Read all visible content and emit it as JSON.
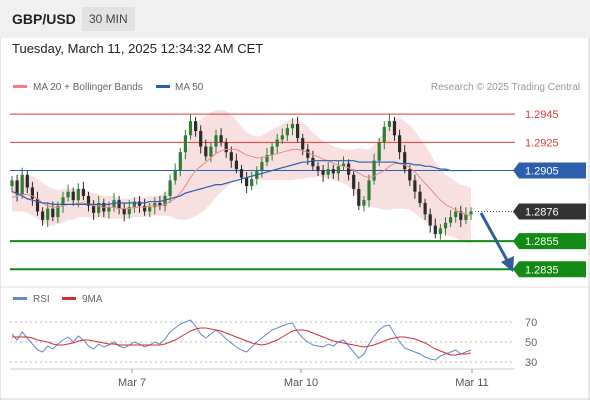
{
  "header": {
    "pair": "GBP/USD",
    "timeframe": "30 MIN"
  },
  "timestamp": "Tuesday, March 11, 2025 12:34:32 AM CET",
  "legend": {
    "bb": "MA 20 + Bollinger Bands",
    "ma50": "MA 50",
    "rsi": "RSI",
    "rsi_ma": "9MA"
  },
  "source": "Research © 2025 Trading Central",
  "colors": {
    "up": "#2e7d32",
    "down": "#2b2b2b",
    "resistance": "#e53935",
    "support": "#138a13",
    "ma50": "#2b5fad",
    "band_fill": "#f7d5d5",
    "ma20": "#e88a8a",
    "rsi": "#6688cc",
    "rsi_ma": "#d32f2f",
    "current_price_bg": "#333333",
    "arrow": "#2f5d9e"
  },
  "chart_data": [
    {
      "type": "candlestick",
      "title": "GBP/USD",
      "timeframe": "30 MIN",
      "x_ticks": [
        "Mar 7",
        "Mar 10",
        "Mar 11"
      ],
      "ylim": [
        1.2826,
        1.2955
      ],
      "levels": [
        {
          "value": 1.2945,
          "label": "1.2945",
          "kind": "resistance"
        },
        {
          "value": 1.2925,
          "label": "1.2925",
          "kind": "resistance"
        },
        {
          "value": 1.2905,
          "label": "1.2905",
          "kind": "pivot"
        },
        {
          "value": 1.2876,
          "label": "1.2876",
          "kind": "current"
        },
        {
          "value": 1.2855,
          "label": "1.2855",
          "kind": "support"
        },
        {
          "value": 1.2835,
          "label": "1.2835",
          "kind": "support"
        }
      ],
      "close": [
        1.2898,
        1.2888,
        1.2902,
        1.2893,
        1.2885,
        1.2876,
        1.287,
        1.2878,
        1.2872,
        1.288,
        1.2886,
        1.289,
        1.2884,
        1.2892,
        1.2887,
        1.288,
        1.2875,
        1.2882,
        1.2876,
        1.2879,
        1.2884,
        1.2878,
        1.2874,
        1.2879,
        1.2883,
        1.288,
        1.2876,
        1.2879,
        1.2882,
        1.288,
        1.2887,
        1.2898,
        1.2905,
        1.2918,
        1.293,
        1.294,
        1.2933,
        1.2922,
        1.2915,
        1.2922,
        1.293,
        1.2925,
        1.2918,
        1.2912,
        1.2906,
        1.29,
        1.2894,
        1.2899,
        1.2905,
        1.2911,
        1.2916,
        1.2922,
        1.2927,
        1.293,
        1.2935,
        1.2938,
        1.2928,
        1.292,
        1.2914,
        1.2908,
        1.2905,
        1.2902,
        1.2906,
        1.2903,
        1.2908,
        1.291,
        1.2902,
        1.2892,
        1.288,
        1.2884,
        1.2898,
        1.2912,
        1.2925,
        1.2936,
        1.294,
        1.293,
        1.2918,
        1.2906,
        1.2898,
        1.289,
        1.2882,
        1.2874,
        1.2866,
        1.286,
        1.2864,
        1.2868,
        1.2872,
        1.2876,
        1.287,
        1.2874,
        1.2876
      ],
      "ma20": [
        1.2886,
        1.2887,
        1.2888,
        1.2888,
        1.2887,
        1.2885,
        1.2882,
        1.288,
        1.2879,
        1.2879,
        1.288,
        1.2881,
        1.2881,
        1.2882,
        1.2882,
        1.2881,
        1.288,
        1.288,
        1.2879,
        1.2879,
        1.2879,
        1.2878,
        1.2878,
        1.2878,
        1.2879,
        1.2879,
        1.2879,
        1.288,
        1.288,
        1.288,
        1.2881,
        1.2883,
        1.2885,
        1.2889,
        1.2894,
        1.29,
        1.2905,
        1.2908,
        1.2911,
        1.2914,
        1.2917,
        1.2919,
        1.292,
        1.292,
        1.292,
        1.2918,
        1.2916,
        1.2915,
        1.2914,
        1.2914,
        1.2915,
        1.2916,
        1.2917,
        1.2918,
        1.2919,
        1.292,
        1.292,
        1.2919,
        1.2918,
        1.2916,
        1.2915,
        1.2913,
        1.2912,
        1.291,
        1.2909,
        1.2908,
        1.2907,
        1.2905,
        1.2903,
        1.2901,
        1.29,
        1.2901,
        1.2903,
        1.2905,
        1.2908,
        1.291,
        1.291,
        1.2909,
        1.2907,
        1.2904,
        1.29,
        1.2896,
        1.2892,
        1.2888,
        1.2884,
        1.2881,
        1.2879,
        1.2877,
        1.2875,
        1.2874,
        1.2873
      ],
      "ma50": [
        1.289,
        1.2889,
        1.2887,
        1.2885,
        1.2884,
        1.2883,
        1.2882,
        1.2882,
        1.2881,
        1.2881,
        1.2881,
        1.2881,
        1.2881,
        1.2881,
        1.2881,
        1.2881,
        1.2881,
        1.2881,
        1.2881,
        1.2881,
        1.2882,
        1.2882,
        1.2882,
        1.2882,
        1.2882,
        1.2882,
        1.2882,
        1.2883,
        1.2883,
        1.2883,
        1.2884,
        1.2885,
        1.2886,
        1.2887,
        1.2889,
        1.289,
        1.2891,
        1.2892,
        1.2893,
        1.2894,
        1.2895,
        1.2895,
        1.2896,
        1.2897,
        1.2898,
        1.2899,
        1.29,
        1.2901,
        1.2902,
        1.2903,
        1.2904,
        1.2905,
        1.2906,
        1.2907,
        1.2908,
        1.2909,
        1.291,
        1.2911,
        1.2911,
        1.2912,
        1.2912,
        1.2912,
        1.2912,
        1.2912,
        1.2912,
        1.2912,
        1.2912,
        1.2912,
        1.2911,
        1.2911,
        1.2911,
        1.2911,
        1.2911,
        1.2911,
        1.2911,
        1.2911,
        1.291,
        1.291,
        1.291,
        1.2909,
        1.2909,
        1.2908,
        1.2908,
        1.2907,
        1.2906,
        1.2906,
        1.2905,
        1.2905,
        1.2905,
        1.2905,
        1.2905
      ],
      "bb_width": [
        0.001,
        0.0011,
        0.0012,
        0.0013,
        0.0014,
        0.0014,
        0.0014,
        0.0014,
        0.0013,
        0.0012,
        0.0012,
        0.0011,
        0.0011,
        0.001,
        0.001,
        0.0009,
        0.0009,
        0.0008,
        0.0008,
        0.0008,
        0.0008,
        0.0007,
        0.0007,
        0.0007,
        0.0007,
        0.0007,
        0.0007,
        0.0007,
        0.0007,
        0.0007,
        0.0008,
        0.001,
        0.0014,
        0.0019,
        0.0024,
        0.0029,
        0.0032,
        0.0033,
        0.0033,
        0.0032,
        0.0031,
        0.0029,
        0.0027,
        0.0024,
        0.0021,
        0.0018,
        0.0016,
        0.0015,
        0.0015,
        0.0016,
        0.0017,
        0.0018,
        0.0019,
        0.002,
        0.0021,
        0.0022,
        0.0021,
        0.002,
        0.0018,
        0.0016,
        0.0014,
        0.0013,
        0.0012,
        0.0012,
        0.0012,
        0.0012,
        0.0013,
        0.0015,
        0.0018,
        0.0019,
        0.002,
        0.0022,
        0.0025,
        0.0028,
        0.0031,
        0.0032,
        0.0032,
        0.0031,
        0.003,
        0.0029,
        0.0028,
        0.0027,
        0.0025,
        0.0023,
        0.0022,
        0.0021,
        0.0021,
        0.002,
        0.002,
        0.002,
        0.002
      ]
    },
    {
      "type": "line",
      "title": "RSI",
      "y_ticks": [
        70,
        50,
        30
      ],
      "ylim": [
        20,
        80
      ],
      "series": [
        {
          "name": "RSI",
          "values": [
            58,
            52,
            60,
            54,
            48,
            42,
            40,
            46,
            43,
            48,
            52,
            55,
            50,
            56,
            52,
            46,
            43,
            48,
            45,
            47,
            50,
            46,
            44,
            47,
            50,
            48,
            45,
            47,
            50,
            48,
            53,
            60,
            64,
            68,
            70,
            72,
            66,
            58,
            54,
            58,
            62,
            58,
            53,
            49,
            45,
            42,
            40,
            45,
            50,
            54,
            58,
            62,
            64,
            66,
            68,
            69,
            60,
            54,
            50,
            47,
            46,
            45,
            48,
            46,
            50,
            52,
            46,
            40,
            34,
            38,
            48,
            56,
            62,
            66,
            67,
            58,
            50,
            44,
            42,
            40,
            38,
            35,
            33,
            32,
            36,
            38,
            40,
            42,
            38,
            40,
            42
          ]
        },
        {
          "name": "9MA",
          "values": [
            55,
            55,
            55,
            55,
            54,
            52,
            51,
            50,
            48,
            47,
            47,
            48,
            49,
            51,
            52,
            52,
            51,
            50,
            49,
            48,
            48,
            47,
            47,
            47,
            47,
            47,
            47,
            47,
            47,
            47,
            48,
            50,
            52,
            55,
            58,
            61,
            63,
            64,
            64,
            63,
            62,
            61,
            59,
            57,
            55,
            53,
            51,
            49,
            48,
            47,
            48,
            50,
            52,
            55,
            58,
            61,
            62,
            62,
            61,
            59,
            57,
            55,
            53,
            51,
            50,
            49,
            48,
            47,
            46,
            45,
            46,
            47,
            49,
            51,
            53,
            54,
            55,
            55,
            54,
            53,
            51,
            49,
            46,
            43,
            41,
            39,
            37,
            37,
            38,
            38,
            39
          ]
        }
      ]
    }
  ]
}
